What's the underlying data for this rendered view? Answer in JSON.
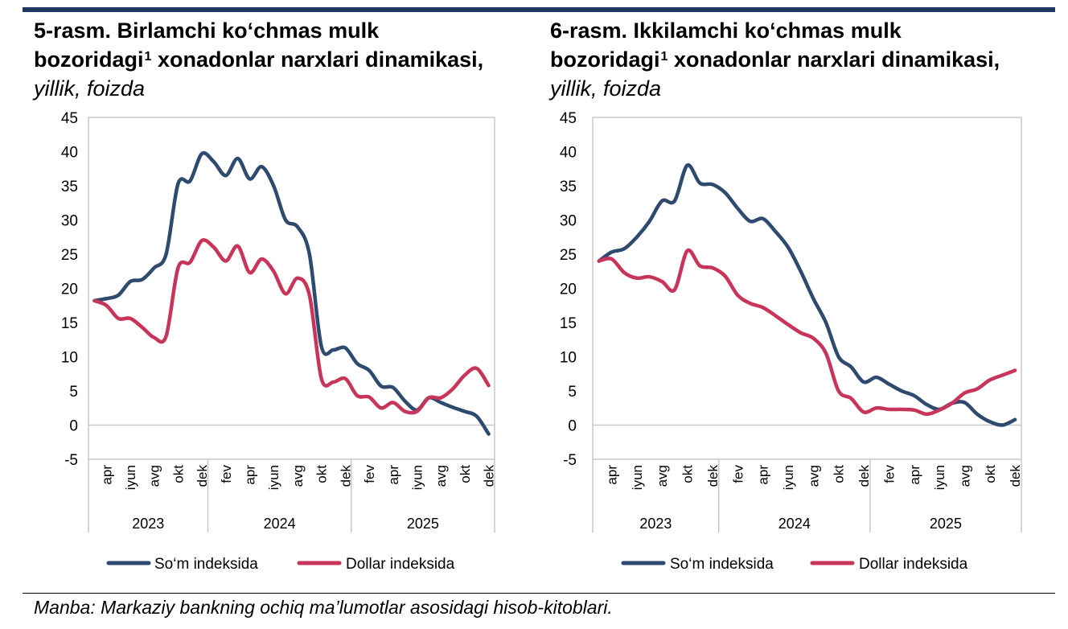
{
  "colors": {
    "som": "#2e4a6e",
    "dollar": "#c8355a",
    "topbar": "#1f3864"
  },
  "charts": [
    {
      "title_main": "5-rasm. Birlamchi ko‘chmas mulk bozoridagi",
      "title_sup": "1",
      "title_rest": " xonadonlar narxlari dinamikasi,",
      "title_italic": "yillik, foizda"
    },
    {
      "title_main": "6-rasm. Ikkilamchi ko‘chmas mulk bozoridagi",
      "title_sup": "1",
      "title_rest": " xonadonlar narxlari dinamikasi,",
      "title_italic": "yillik, foizda"
    }
  ],
  "chart_data": [
    {
      "type": "line",
      "title": "5-rasm. Birlamchi ko‘chmas mulk bozoridagi xonadonlar narxlari dinamikasi, yillik, foizda",
      "ylim": [
        -5,
        45
      ],
      "yticks": [
        "-5",
        "0",
        "5",
        "10",
        "15",
        "20",
        "25",
        "30",
        "35",
        "40",
        "45"
      ],
      "x_start": "2023-03",
      "x_end": "2025-12",
      "month_labels": [
        "apr",
        "iyun",
        "avg",
        "okt",
        "dek",
        "fev",
        "apr",
        "iyun",
        "avg",
        "okt",
        "dek",
        "fev",
        "apr",
        "iyun",
        "avg",
        "okt",
        "dek"
      ],
      "years": [
        "2023",
        "2024",
        "2025"
      ],
      "legend": "bottom",
      "series": [
        {
          "name": "So‘m indeksida",
          "values": [
            18.2,
            18.5,
            19,
            21,
            21.3,
            23,
            25,
            35.3,
            35.7,
            39.7,
            38.5,
            36.5,
            39,
            36,
            37.8,
            35,
            30,
            29,
            25,
            11.5,
            11,
            11.3,
            9,
            8,
            5.7,
            5.5,
            3.5,
            2.2,
            4,
            3.3,
            2.6,
            2.0,
            1.3,
            -1.3
          ]
        },
        {
          "name": "Dollar indeksida",
          "values": [
            18.2,
            17.5,
            15.6,
            15.6,
            14.3,
            12.8,
            13,
            23,
            23.8,
            27,
            26,
            24,
            26.2,
            22.3,
            24.3,
            22.5,
            19.2,
            21.5,
            19,
            6.8,
            6.3,
            6.8,
            4.3,
            4.1,
            2.5,
            3.3,
            2,
            2,
            4,
            4,
            5.3,
            7.3,
            8.3,
            5.8
          ]
        }
      ]
    },
    {
      "type": "line",
      "title": "6-rasm. Ikkilamchi ko‘chmas mulk bozoridagi xonadonlar narxlari dinamikasi, yillik, foizda",
      "ylim": [
        -5,
        45
      ],
      "yticks": [
        "-5",
        "0",
        "5",
        "10",
        "15",
        "20",
        "25",
        "30",
        "35",
        "40",
        "45"
      ],
      "x_start": "2023-03",
      "x_end": "2025-12",
      "month_labels": [
        "apr",
        "iyun",
        "avg",
        "okt",
        "dek",
        "fev",
        "apr",
        "iyun",
        "avg",
        "okt",
        "dek",
        "fev",
        "apr",
        "iyun",
        "avg",
        "okt",
        "dek"
      ],
      "years": [
        "2023",
        "2024",
        "2025"
      ],
      "legend": "bottom",
      "series": [
        {
          "name": "So‘m indeksida",
          "values": [
            24,
            25.3,
            25.8,
            27.5,
            29.8,
            32.8,
            32.8,
            38,
            35.4,
            35.2,
            34,
            31.7,
            29.8,
            30.2,
            28.3,
            26,
            22.5,
            18.5,
            15,
            10,
            8.5,
            6.3,
            7,
            6,
            5,
            4.3,
            3,
            2.3,
            3.2,
            3.3,
            1.6,
            0.5,
            0,
            0.8
          ]
        },
        {
          "name": "Dollar indeksida",
          "values": [
            24,
            24.3,
            22.3,
            21.5,
            21.7,
            21,
            19.8,
            25.5,
            23.3,
            23,
            21.8,
            19,
            17.8,
            17.2,
            16,
            14.7,
            13.5,
            12.7,
            10.5,
            5,
            3.9,
            1.9,
            2.5,
            2.3,
            2.3,
            2.2,
            1.6,
            2.2,
            3.2,
            4.7,
            5.3,
            6.6,
            7.3,
            8
          ]
        }
      ]
    }
  ],
  "source": "Manba: Markaziy bankning ochiq ma’lumotlar asosidagi hisob-kitoblari."
}
